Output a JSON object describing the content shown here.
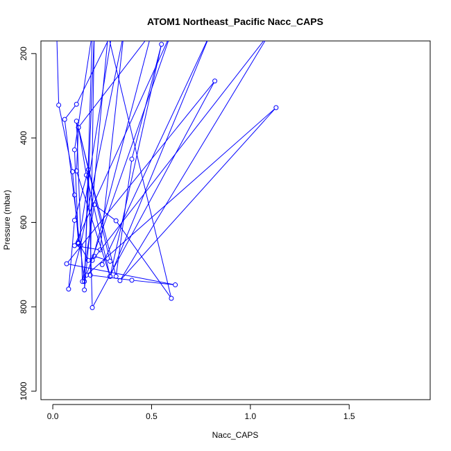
{
  "chart_data": {
    "type": "line",
    "title": "ATOM1 Northeast_Pacific Nacc_CAPS",
    "xlabel": "Nacc_CAPS",
    "ylabel": "Pressure (mbar)",
    "xlim": [
      -0.06,
      1.91
    ],
    "ylim": [
      1020,
      170
    ],
    "y_reversed": true,
    "grid": false,
    "x_ticks": [
      0.0,
      0.5,
      1.0,
      1.5
    ],
    "x_tick_labels": [
      "0.0",
      "0.5",
      "1.0",
      "1.5"
    ],
    "y_ticks": [
      200,
      400,
      600,
      800,
      1000
    ],
    "y_tick_labels": [
      "200",
      "400",
      "600",
      "800",
      "1000"
    ],
    "series_color": "#0000ff",
    "marker": "open-circle",
    "series": [
      {
        "points": [
          [
            0.02,
            155
          ],
          [
            0.03,
            322
          ],
          [
            0.1,
            480
          ],
          [
            0.11,
            535
          ],
          [
            0.13,
            648
          ],
          [
            0.18,
            690
          ],
          [
            0.21,
            680
          ],
          [
            0.29,
            692
          ],
          [
            0.13,
            375
          ],
          [
            0.17,
            488
          ],
          [
            0.29,
            728
          ],
          [
            0.55,
            178
          ],
          [
            0.4,
            450
          ],
          [
            0.32,
            728
          ],
          [
            0.12,
            360
          ],
          [
            0.15,
            740
          ],
          [
            0.21,
            558
          ],
          [
            0.32,
            596
          ],
          [
            0.6,
            780
          ],
          [
            0.28,
            155
          ],
          [
            0.16,
            760
          ],
          [
            0.2,
            150
          ],
          [
            0.11,
            428
          ],
          [
            0.13,
            650
          ],
          [
            0.3,
            150
          ],
          [
            0.12,
            320
          ],
          [
            0.06,
            356
          ],
          [
            0.16,
            740
          ],
          [
            0.21,
            150
          ],
          [
            0.19,
            725
          ],
          [
            0.4,
            737
          ],
          [
            0.62,
            748
          ],
          [
            0.07,
            698
          ],
          [
            0.82,
            265
          ],
          [
            0.2,
            802
          ],
          [
            0.18,
            475
          ],
          [
            0.11,
            595
          ],
          [
            0.08,
            758
          ],
          [
            0.14,
            655
          ],
          [
            0.36,
            150
          ],
          [
            0.24,
            665
          ],
          [
            0.11,
            655
          ],
          [
            0.6,
            150
          ],
          [
            0.17,
            725
          ],
          [
            1.13,
            328
          ],
          [
            0.34,
            738
          ],
          [
            1.1,
            150
          ],
          [
            0.2,
            690
          ],
          [
            0.5,
            150
          ],
          [
            0.13,
            375
          ],
          [
            0.12,
            478
          ],
          [
            0.29,
            728
          ],
          [
            0.8,
            150
          ],
          [
            0.25,
            700
          ]
        ]
      }
    ]
  }
}
